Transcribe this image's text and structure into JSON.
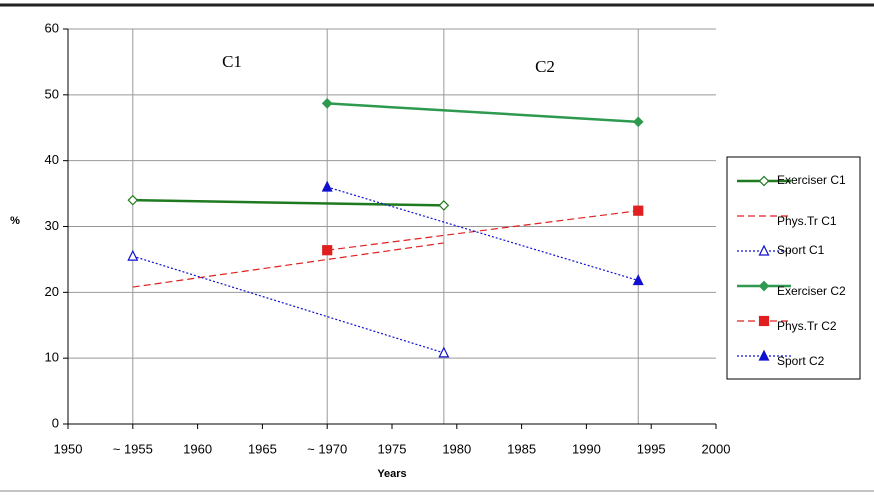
{
  "chart_data": {
    "type": "line",
    "annotations": [
      "C1",
      "C2"
    ],
    "xlabel": "Years",
    "ylabel": "%",
    "xlim": [
      1950,
      2000
    ],
    "xticks": [
      1950,
      {
        "value": 1955,
        "label": "~ 1955"
      },
      1960,
      1965,
      {
        "value": 1970,
        "label": "~ 1970"
      },
      1975,
      1980,
      1985,
      1990,
      1995,
      2000
    ],
    "ylim": [
      0,
      60
    ],
    "yticks": [
      0,
      10,
      20,
      30,
      40,
      50,
      60
    ],
    "grid": true,
    "legend": "right",
    "series": [
      {
        "name": "Exerciser C1",
        "color": "#1e7a1e",
        "dash": "solid",
        "marker": "diamond",
        "fill": "open",
        "x": [
          1955,
          1979
        ],
        "values": [
          34,
          33.2
        ]
      },
      {
        "name": "Phys.Tr C1",
        "color": "#e02020",
        "dash": "dashed",
        "marker": "none",
        "x": [
          1955,
          1979
        ],
        "values": [
          20.8,
          27.5
        ]
      },
      {
        "name": "Sport C1",
        "color": "#1010d0",
        "dash": "dotted",
        "marker": "triangle",
        "fill": "open",
        "x": [
          1955,
          1979
        ],
        "values": [
          25.5,
          10.8
        ]
      },
      {
        "name": "Exerciser C2",
        "color": "#2e9a50",
        "dash": "solid",
        "marker": "diamond",
        "fill": "filled",
        "x": [
          1970,
          1994
        ],
        "values": [
          48.7,
          45.9
        ]
      },
      {
        "name": "Phys.Tr C2",
        "color": "#e02020",
        "dash": "dashed",
        "marker": "square",
        "fill": "filled",
        "x": [
          1970,
          1994
        ],
        "values": [
          26.4,
          32.4
        ]
      },
      {
        "name": "Sport C2",
        "color": "#1010d0",
        "dash": "dotted",
        "marker": "triangle",
        "fill": "filled",
        "x": [
          1970,
          1994
        ],
        "values": [
          36,
          21.8
        ]
      }
    ]
  }
}
